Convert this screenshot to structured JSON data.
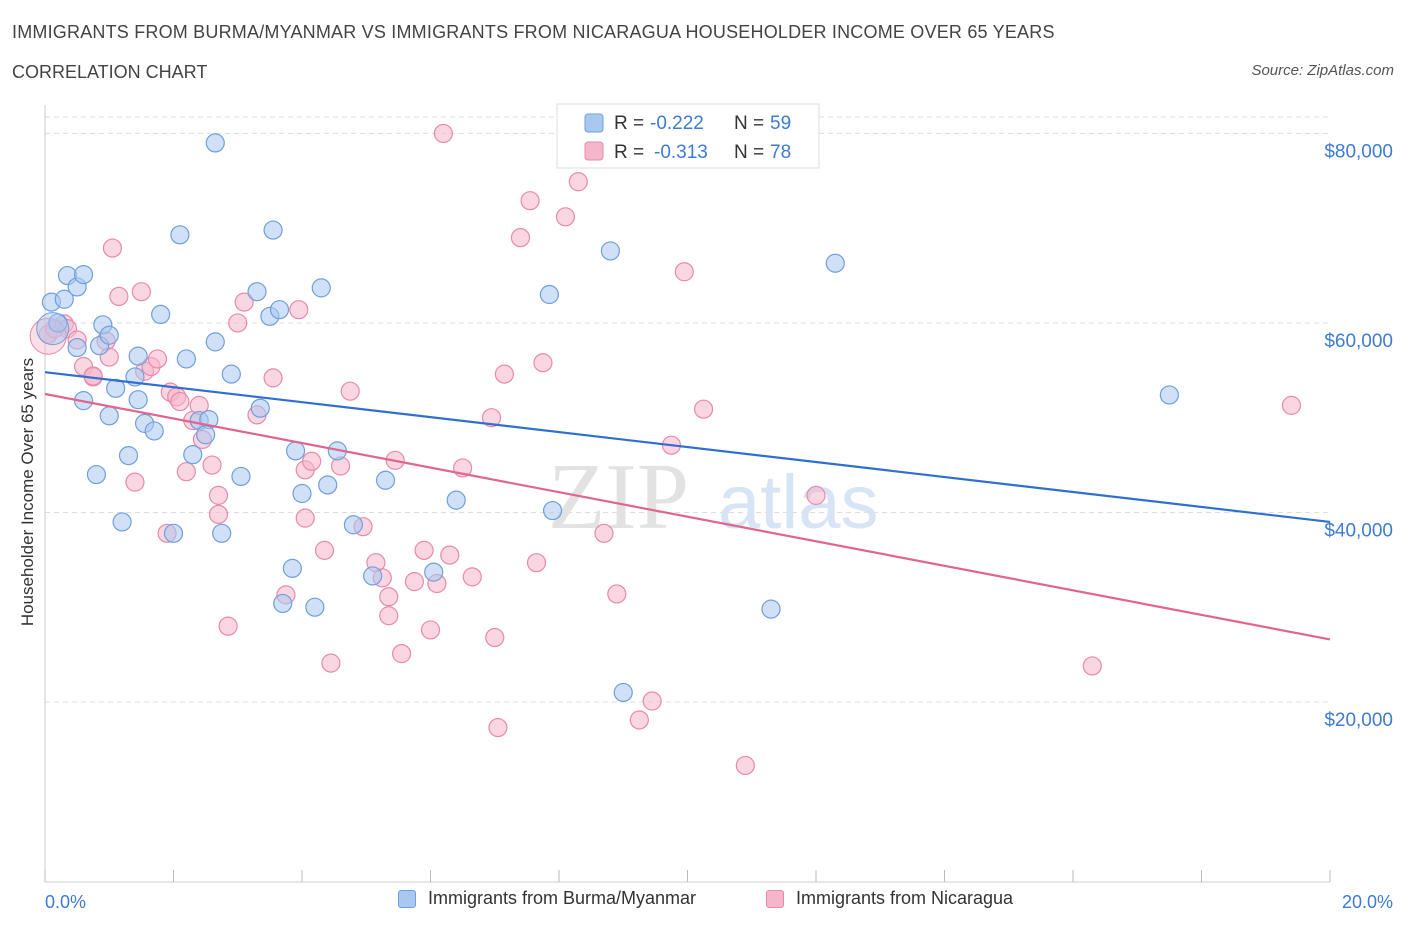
{
  "header": {
    "title": "IMMIGRANTS FROM BURMA/MYANMAR VS IMMIGRANTS FROM NICARAGUA HOUSEHOLDER INCOME OVER 65 YEARS",
    "subtitle": "CORRELATION CHART",
    "source": "Source: ZipAtlas.com"
  },
  "watermark": {
    "zip": "ZIP",
    "atlas": "atlas"
  },
  "legend_top": [
    {
      "r_label": "R =",
      "r_value": "-0.222",
      "n_label": "N =",
      "n_value": "59"
    },
    {
      "r_label": "R =",
      "r_value": "-0.313",
      "n_label": "N =",
      "n_value": "78"
    }
  ],
  "colors": {
    "burma_fill": "#a9c8f0",
    "burma_stroke": "#6f9fdc",
    "burma_line": "#2f6fcf",
    "nicaragua_fill": "#f5b5cb",
    "nicaragua_stroke": "#e88aaa",
    "nicaragua_line": "#e0658f",
    "tick_label": "#3d7bd4",
    "grid": "#dddddd"
  },
  "chart_data": {
    "type": "scatter",
    "title": "IMMIGRANTS FROM BURMA/MYANMAR VS IMMIGRANTS FROM NICARAGUA HOUSEHOLDER INCOME OVER 65 YEARS",
    "xlabel": "",
    "ylabel": "Householder Income Over 65 years",
    "xlim": [
      0,
      20
    ],
    "ylim": [
      1000,
      83000
    ],
    "x_tick_labels": [
      "0.0%",
      "20.0%"
    ],
    "y_ticks": [
      20000,
      40000,
      60000,
      80000
    ],
    "y_tick_labels": [
      "$20,000",
      "$40,000",
      "$60,000",
      "$80,000"
    ],
    "grid": true,
    "legend_position": "top-center",
    "series": [
      {
        "name": "Immigrants from Burma/Myanmar",
        "R": -0.222,
        "N": 59,
        "trend": {
          "x": [
            0,
            20
          ],
          "y": [
            54800,
            39000
          ]
        },
        "points": [
          [
            0.1,
            62200
          ],
          [
            0.2,
            60000
          ],
          [
            0.3,
            62500
          ],
          [
            0.35,
            65000
          ],
          [
            0.5,
            63800
          ],
          [
            0.6,
            65100
          ],
          [
            0.5,
            57400
          ],
          [
            0.85,
            57600
          ],
          [
            0.9,
            59800
          ],
          [
            1.0,
            58700
          ],
          [
            0.6,
            51800
          ],
          [
            1.1,
            53100
          ],
          [
            1.0,
            50200
          ],
          [
            1.45,
            51900
          ],
          [
            1.45,
            56500
          ],
          [
            1.4,
            54300
          ],
          [
            1.55,
            49400
          ],
          [
            1.7,
            48600
          ],
          [
            1.8,
            60900
          ],
          [
            2.1,
            69300
          ],
          [
            2.2,
            56200
          ],
          [
            2.4,
            49700
          ],
          [
            2.55,
            49800
          ],
          [
            2.65,
            58000
          ],
          [
            2.9,
            54600
          ],
          [
            2.75,
            37800
          ],
          [
            2.3,
            46100
          ],
          [
            2.5,
            48200
          ],
          [
            3.05,
            43800
          ],
          [
            3.3,
            63300
          ],
          [
            3.5,
            60700
          ],
          [
            3.65,
            61400
          ],
          [
            3.9,
            46500
          ],
          [
            4.0,
            42000
          ],
          [
            3.35,
            51000
          ],
          [
            3.55,
            69800
          ],
          [
            2.65,
            79000
          ],
          [
            4.3,
            63700
          ],
          [
            4.4,
            42900
          ],
          [
            4.55,
            46500
          ],
          [
            4.8,
            38700
          ],
          [
            5.1,
            33300
          ],
          [
            5.3,
            43400
          ],
          [
            3.7,
            30400
          ],
          [
            3.85,
            34100
          ],
          [
            4.2,
            30000
          ],
          [
            6.05,
            33700
          ],
          [
            6.4,
            41300
          ],
          [
            7.85,
            63000
          ],
          [
            7.9,
            40200
          ],
          [
            8.8,
            67600
          ],
          [
            9.0,
            21000
          ],
          [
            11.3,
            29800
          ],
          [
            12.3,
            66300
          ],
          [
            17.5,
            52400
          ],
          [
            1.2,
            39000
          ],
          [
            2.0,
            37800
          ],
          [
            0.8,
            44000
          ],
          [
            1.3,
            46000
          ]
        ]
      },
      {
        "name": "Immigrants from Nicaragua",
        "R": -0.313,
        "N": 78,
        "trend": {
          "x": [
            0,
            20
          ],
          "y": [
            52500,
            26600
          ]
        },
        "points": [
          [
            0.05,
            58800
          ],
          [
            0.15,
            59400
          ],
          [
            0.3,
            59900
          ],
          [
            0.35,
            59400
          ],
          [
            0.5,
            58200
          ],
          [
            0.6,
            55400
          ],
          [
            0.75,
            54300
          ],
          [
            0.75,
            54400
          ],
          [
            0.95,
            58100
          ],
          [
            1.0,
            56400
          ],
          [
            1.15,
            62800
          ],
          [
            1.05,
            67900
          ],
          [
            1.5,
            63300
          ],
          [
            1.55,
            54900
          ],
          [
            1.65,
            55400
          ],
          [
            1.75,
            56200
          ],
          [
            1.95,
            52700
          ],
          [
            2.05,
            52200
          ],
          [
            2.1,
            51700
          ],
          [
            2.2,
            44300
          ],
          [
            2.3,
            49700
          ],
          [
            2.4,
            51300
          ],
          [
            2.45,
            47700
          ],
          [
            2.6,
            45000
          ],
          [
            2.7,
            41800
          ],
          [
            2.7,
            39800
          ],
          [
            2.85,
            28000
          ],
          [
            3.1,
            62200
          ],
          [
            3.0,
            60000
          ],
          [
            3.3,
            50300
          ],
          [
            3.55,
            54200
          ],
          [
            3.75,
            31300
          ],
          [
            3.95,
            61400
          ],
          [
            4.05,
            39400
          ],
          [
            4.05,
            44500
          ],
          [
            4.15,
            45400
          ],
          [
            4.35,
            36000
          ],
          [
            4.45,
            24100
          ],
          [
            4.6,
            44900
          ],
          [
            4.75,
            52800
          ],
          [
            4.95,
            38500
          ],
          [
            5.15,
            34700
          ],
          [
            5.25,
            33100
          ],
          [
            5.35,
            31100
          ],
          [
            5.35,
            29100
          ],
          [
            5.45,
            45500
          ],
          [
            5.55,
            25100
          ],
          [
            5.75,
            32700
          ],
          [
            5.9,
            36000
          ],
          [
            6.0,
            27600
          ],
          [
            6.1,
            32500
          ],
          [
            6.3,
            35500
          ],
          [
            6.5,
            44700
          ],
          [
            6.65,
            33200
          ],
          [
            6.95,
            50000
          ],
          [
            7.0,
            26800
          ],
          [
            7.05,
            17300
          ],
          [
            7.15,
            54600
          ],
          [
            7.4,
            69000
          ],
          [
            7.55,
            72900
          ],
          [
            7.65,
            34700
          ],
          [
            7.75,
            55800
          ],
          [
            8.1,
            71200
          ],
          [
            8.3,
            74900
          ],
          [
            8.7,
            37800
          ],
          [
            8.9,
            31400
          ],
          [
            9.25,
            18100
          ],
          [
            9.45,
            20100
          ],
          [
            9.75,
            47100
          ],
          [
            9.95,
            65400
          ],
          [
            10.25,
            50900
          ],
          [
            10.9,
            13300
          ],
          [
            12.0,
            41800
          ],
          [
            16.3,
            23800
          ],
          [
            19.4,
            51300
          ],
          [
            6.2,
            80000
          ],
          [
            1.4,
            43200
          ],
          [
            1.9,
            37800
          ]
        ]
      }
    ]
  }
}
